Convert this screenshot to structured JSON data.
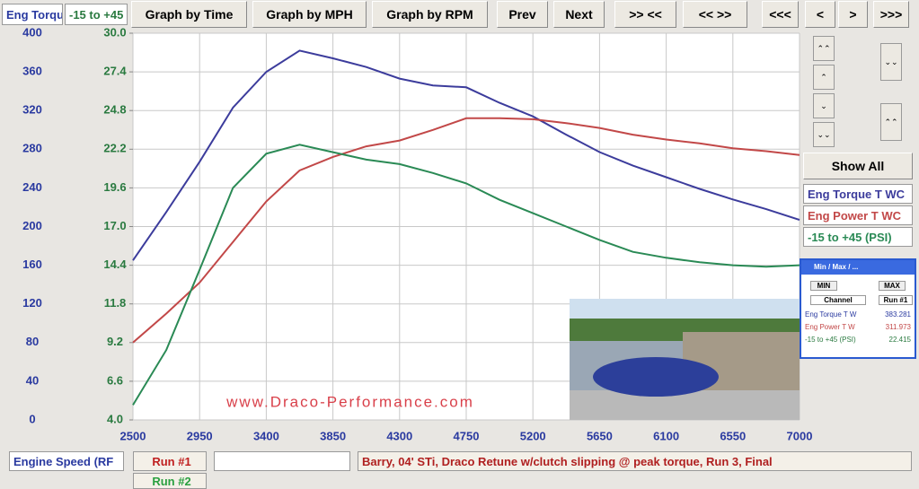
{
  "toolbar": {
    "buttons": [
      "Graph by Time",
      "Graph by MPH",
      "Graph by RPM",
      "Prev",
      "Next",
      ">> <<",
      "<< >>",
      "<<<",
      "<",
      ">",
      ">>>"
    ]
  },
  "side_panel": {
    "show_all": "Show All"
  },
  "minmax": {
    "title": "Min / Max / ...",
    "headers": [
      "MIN",
      "MAX"
    ],
    "columns": [
      "Channel",
      "Run #1"
    ],
    "rows": [
      [
        "Eng Torque T W",
        383.281
      ],
      [
        "Eng Power T W",
        311.973
      ],
      [
        "-15 to +45 (PSI)",
        22.415
      ]
    ]
  },
  "runs": [
    "Run #1",
    "Run #2"
  ],
  "comment": "Barry, 04' STi, Draco Retune w/clutch slipping @ peak torque, Run 3, Final",
  "watermark": "www.Draco-Performance.com",
  "chart_data": {
    "type": "line",
    "y_label": "Eng Torqu",
    "y2_label": "-15 to +45",
    "x_label": "Engine Speed (RF",
    "x": [
      2500,
      2725,
      2950,
      3175,
      3400,
      3625,
      3850,
      4075,
      4300,
      4525,
      4750,
      4975,
      5200,
      5425,
      5650,
      5875,
      6100,
      6325,
      6550,
      6775,
      7000
    ],
    "series": [
      {
        "name": "Eng Torque T WC",
        "color": "#3c3c9c",
        "values": [
          165,
          215,
          267,
          323,
          360,
          382,
          374,
          365,
          353,
          346,
          344,
          328,
          314,
          295,
          277,
          263,
          251,
          239,
          228,
          218,
          207
        ]
      },
      {
        "name": "Eng Power T WC",
        "color": "#c24848",
        "values": [
          80,
          110,
          142,
          184,
          226,
          258,
          272,
          283,
          289,
          300,
          312,
          312,
          311,
          307,
          302,
          295,
          290,
          286,
          281,
          278,
          274
        ]
      },
      {
        "name": "-15 to +45 (PSI)",
        "color": "#2a8a55",
        "axis": "y2",
        "values": [
          5.0,
          8.7,
          14.1,
          19.6,
          21.9,
          22.5,
          22.0,
          21.5,
          21.2,
          20.6,
          19.9,
          18.8,
          17.9,
          17.0,
          16.1,
          15.3,
          14.9,
          14.6,
          14.4,
          14.3,
          14.4
        ]
      }
    ],
    "xlim": [
      2500,
      7000
    ],
    "xticks": [
      2500,
      2950,
      3400,
      3850,
      4300,
      4750,
      5200,
      5650,
      6100,
      6550,
      7000
    ],
    "ylim": [
      0,
      400
    ],
    "yticks": [
      0,
      40,
      80,
      120,
      160,
      200,
      240,
      280,
      320,
      360,
      400
    ],
    "y2lim": [
      4,
      30
    ],
    "y2ticks": [
      {
        "value": 4,
        "label": "4.0"
      },
      6.6,
      9.2,
      11.8,
      14.4,
      {
        "value": 17,
        "label": "17.0"
      },
      19.6,
      22.2,
      24.8,
      27.4,
      {
        "value": 30,
        "label": "30.0"
      }
    ],
    "grid": true
  }
}
